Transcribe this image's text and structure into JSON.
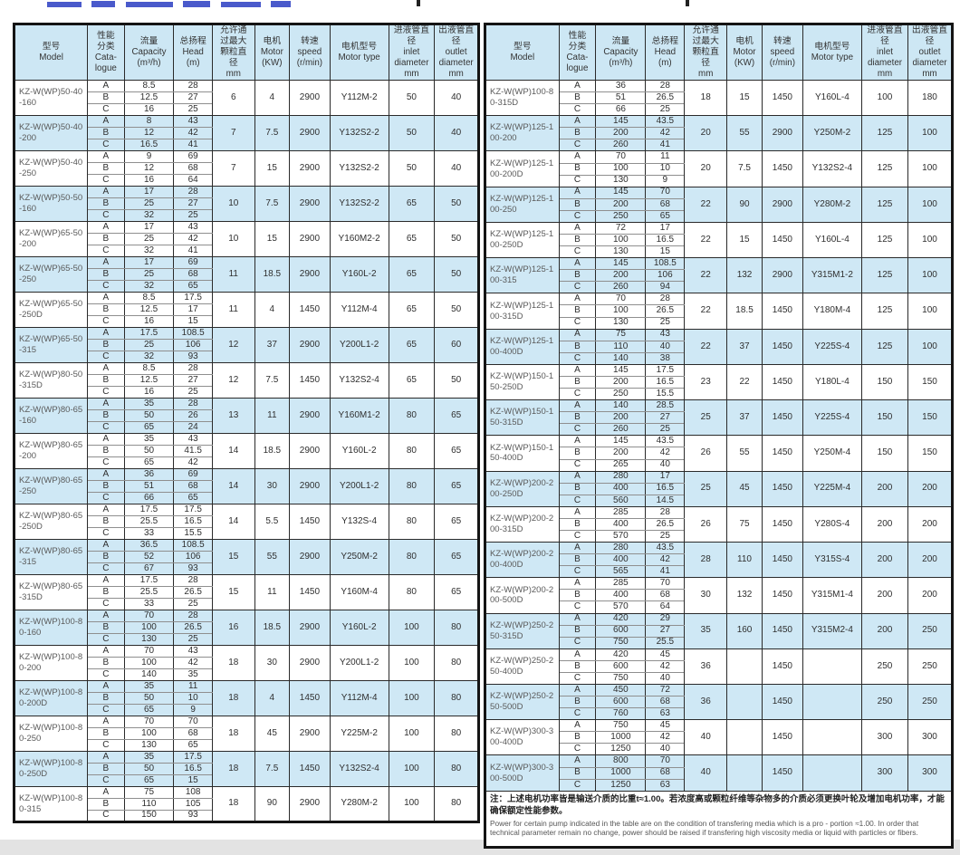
{
  "colors": {
    "band_blue": "#cfe8f5",
    "header_blue": "#cde7f4",
    "border": "#2a2a2a",
    "title_blue": "#4a5acb"
  },
  "catalogue_labels": [
    "A",
    "B",
    "C"
  ],
  "columns": [
    {
      "key": "model",
      "label": "型号\nModel"
    },
    {
      "key": "catalogue",
      "label": "性能\n分类\nCata-\nlogue"
    },
    {
      "key": "capacity",
      "label": "流量\nCapacity\n(m³/h)"
    },
    {
      "key": "head",
      "label": "总扬程\nHead\n(m)"
    },
    {
      "key": "particle",
      "label": "允许通\n过最大\n颗粒直\n径\nmm"
    },
    {
      "key": "motor",
      "label": "电机\nMotor\n(KW)"
    },
    {
      "key": "speed",
      "label": "转速\nspeed\n(r/min)"
    },
    {
      "key": "type",
      "label": "电机型号\nMotor type"
    },
    {
      "key": "inlet",
      "label": "进液管直\n径\ninlet\ndiameter\nmm"
    },
    {
      "key": "outlet",
      "label": "出液管直\n径\noutlet\ndiameter\nmm"
    }
  ],
  "left_table": {
    "rows": [
      {
        "model": "KZ-W(WP)50-40-160",
        "abc": [
          [
            "8.5",
            "28"
          ],
          [
            "12.5",
            "27"
          ],
          [
            "16",
            "25"
          ]
        ],
        "particle": "6",
        "motor": "4",
        "speed": "2900",
        "type": "Y112M-2",
        "inlet": "50",
        "outlet": "40"
      },
      {
        "model": "KZ-W(WP)50-40-200",
        "abc": [
          [
            "8",
            "43"
          ],
          [
            "12",
            "42"
          ],
          [
            "16.5",
            "41"
          ]
        ],
        "particle": "7",
        "motor": "7.5",
        "speed": "2900",
        "type": "Y132S2-2",
        "inlet": "50",
        "outlet": "40"
      },
      {
        "model": "KZ-W(WP)50-40-250",
        "abc": [
          [
            "9",
            "69"
          ],
          [
            "12",
            "68"
          ],
          [
            "16",
            "64"
          ]
        ],
        "particle": "7",
        "motor": "15",
        "speed": "2900",
        "type": "Y132S2-2",
        "inlet": "50",
        "outlet": "40"
      },
      {
        "model": "KZ-W(WP)50-50-160",
        "abc": [
          [
            "17",
            "28"
          ],
          [
            "25",
            "27"
          ],
          [
            "32",
            "25"
          ]
        ],
        "particle": "10",
        "motor": "7.5",
        "speed": "2900",
        "type": "Y132S2-2",
        "inlet": "65",
        "outlet": "50"
      },
      {
        "model": "KZ-W(WP)65-50-200",
        "abc": [
          [
            "17",
            "43"
          ],
          [
            "25",
            "42"
          ],
          [
            "32",
            "41"
          ]
        ],
        "particle": "10",
        "motor": "15",
        "speed": "2900",
        "type": "Y160M2-2",
        "inlet": "65",
        "outlet": "50"
      },
      {
        "model": "KZ-W(WP)65-50-250",
        "abc": [
          [
            "17",
            "69"
          ],
          [
            "25",
            "68"
          ],
          [
            "32",
            "65"
          ]
        ],
        "particle": "11",
        "motor": "18.5",
        "speed": "2900",
        "type": "Y160L-2",
        "inlet": "65",
        "outlet": "50"
      },
      {
        "model": "KZ-W(WP)65-50-250D",
        "abc": [
          [
            "8.5",
            "17.5"
          ],
          [
            "12.5",
            "17"
          ],
          [
            "16",
            "15"
          ]
        ],
        "particle": "11",
        "motor": "4",
        "speed": "1450",
        "type": "Y112M-4",
        "inlet": "65",
        "outlet": "50"
      },
      {
        "model": "KZ-W(WP)65-50-315",
        "abc": [
          [
            "17.5",
            "108.5"
          ],
          [
            "25",
            "106"
          ],
          [
            "32",
            "93"
          ]
        ],
        "particle": "12",
        "motor": "37",
        "speed": "2900",
        "type": "Y200L1-2",
        "inlet": "65",
        "outlet": "60"
      },
      {
        "model": "KZ-W(WP)80-50-315D",
        "abc": [
          [
            "8.5",
            "28"
          ],
          [
            "12.5",
            "27"
          ],
          [
            "16",
            "25"
          ]
        ],
        "particle": "12",
        "motor": "7.5",
        "speed": "1450",
        "type": "Y132S2-4",
        "inlet": "65",
        "outlet": "50"
      },
      {
        "model": "KZ-W(WP)80-65-160",
        "abc": [
          [
            "35",
            "28"
          ],
          [
            "50",
            "26"
          ],
          [
            "65",
            "24"
          ]
        ],
        "particle": "13",
        "motor": "11",
        "speed": "2900",
        "type": "Y160M1-2",
        "inlet": "80",
        "outlet": "65"
      },
      {
        "model": "KZ-W(WP)80-65-200",
        "abc": [
          [
            "35",
            "43"
          ],
          [
            "50",
            "41.5"
          ],
          [
            "65",
            "42"
          ]
        ],
        "particle": "14",
        "motor": "18.5",
        "speed": "2900",
        "type": "Y160L-2",
        "inlet": "80",
        "outlet": "65"
      },
      {
        "model": "KZ-W(WP)80-65-250",
        "abc": [
          [
            "36",
            "69"
          ],
          [
            "51",
            "68"
          ],
          [
            "66",
            "65"
          ]
        ],
        "particle": "14",
        "motor": "30",
        "speed": "2900",
        "type": "Y200L1-2",
        "inlet": "80",
        "outlet": "65"
      },
      {
        "model": "KZ-W(WP)80-65-250D",
        "abc": [
          [
            "17.5",
            "17.5"
          ],
          [
            "25.5",
            "16.5"
          ],
          [
            "33",
            "15.5"
          ]
        ],
        "particle": "14",
        "motor": "5.5",
        "speed": "1450",
        "type": "Y132S-4",
        "inlet": "80",
        "outlet": "65"
      },
      {
        "model": "KZ-W(WP)80-65-315",
        "abc": [
          [
            "36.5",
            "108.5"
          ],
          [
            "52",
            "106"
          ],
          [
            "67",
            "93"
          ]
        ],
        "particle": "15",
        "motor": "55",
        "speed": "2900",
        "type": "Y250M-2",
        "inlet": "80",
        "outlet": "65"
      },
      {
        "model": "KZ-W(WP)80-65-315D",
        "abc": [
          [
            "17.5",
            "28"
          ],
          [
            "25.5",
            "26.5"
          ],
          [
            "33",
            "25"
          ]
        ],
        "particle": "15",
        "motor": "11",
        "speed": "1450",
        "type": "Y160M-4",
        "inlet": "80",
        "outlet": "65"
      },
      {
        "model": "KZ-W(WP)100-80-160",
        "abc": [
          [
            "70",
            "28"
          ],
          [
            "100",
            "26.5"
          ],
          [
            "130",
            "25"
          ]
        ],
        "particle": "16",
        "motor": "18.5",
        "speed": "2900",
        "type": "Y160L-2",
        "inlet": "100",
        "outlet": "80"
      },
      {
        "model": "KZ-W(WP)100-80-200",
        "abc": [
          [
            "70",
            "43"
          ],
          [
            "100",
            "42"
          ],
          [
            "140",
            "35"
          ]
        ],
        "particle": "18",
        "motor": "30",
        "speed": "2900",
        "type": "Y200L1-2",
        "inlet": "100",
        "outlet": "80"
      },
      {
        "model": "KZ-W(WP)100-80-200D",
        "abc": [
          [
            "35",
            "11"
          ],
          [
            "50",
            "10"
          ],
          [
            "65",
            "9"
          ]
        ],
        "particle": "18",
        "motor": "4",
        "speed": "1450",
        "type": "Y112M-4",
        "inlet": "100",
        "outlet": "80"
      },
      {
        "model": "KZ-W(WP)100-80-250",
        "abc": [
          [
            "70",
            "70"
          ],
          [
            "100",
            "68"
          ],
          [
            "130",
            "65"
          ]
        ],
        "particle": "18",
        "motor": "45",
        "speed": "2900",
        "type": "Y225M-2",
        "inlet": "100",
        "outlet": "80"
      },
      {
        "model": "KZ-W(WP)100-80-250D",
        "abc": [
          [
            "35",
            "17.5"
          ],
          [
            "50",
            "16.5"
          ],
          [
            "65",
            "15"
          ]
        ],
        "particle": "18",
        "motor": "7.5",
        "speed": "1450",
        "type": "Y132S2-4",
        "inlet": "100",
        "outlet": "80"
      },
      {
        "model": "KZ-W(WP)100-80-315",
        "abc": [
          [
            "75",
            "108"
          ],
          [
            "110",
            "105"
          ],
          [
            "150",
            "93"
          ]
        ],
        "particle": "18",
        "motor": "90",
        "speed": "2900",
        "type": "Y280M-2",
        "inlet": "100",
        "outlet": "80"
      }
    ]
  },
  "right_table": {
    "rows": [
      {
        "model": "KZ-W(WP)100-80-315D",
        "abc": [
          [
            "36",
            "28"
          ],
          [
            "51",
            "26.5"
          ],
          [
            "66",
            "25"
          ]
        ],
        "particle": "18",
        "motor": "15",
        "speed": "1450",
        "type": "Y160L-4",
        "inlet": "100",
        "outlet": "180"
      },
      {
        "model": "KZ-W(WP)125-100-200",
        "abc": [
          [
            "145",
            "43.5"
          ],
          [
            "200",
            "42"
          ],
          [
            "260",
            "41"
          ]
        ],
        "particle": "20",
        "motor": "55",
        "speed": "2900",
        "type": "Y250M-2",
        "inlet": "125",
        "outlet": "100"
      },
      {
        "model": "KZ-W(WP)125-100-200D",
        "abc": [
          [
            "70",
            "11"
          ],
          [
            "100",
            "10"
          ],
          [
            "130",
            "9"
          ]
        ],
        "particle": "20",
        "motor": "7.5",
        "speed": "1450",
        "type": "Y132S2-4",
        "inlet": "125",
        "outlet": "100"
      },
      {
        "model": "KZ-W(WP)125-100-250",
        "abc": [
          [
            "145",
            "70"
          ],
          [
            "200",
            "68"
          ],
          [
            "250",
            "65"
          ]
        ],
        "particle": "22",
        "motor": "90",
        "speed": "2900",
        "type": "Y280M-2",
        "inlet": "125",
        "outlet": "100"
      },
      {
        "model": "KZ-W(WP)125-100-250D",
        "abc": [
          [
            "72",
            "17"
          ],
          [
            "100",
            "16.5"
          ],
          [
            "130",
            "15"
          ]
        ],
        "particle": "22",
        "motor": "15",
        "speed": "1450",
        "type": "Y160L-4",
        "inlet": "125",
        "outlet": "100"
      },
      {
        "model": "KZ-W(WP)125-100-315",
        "abc": [
          [
            "145",
            "108.5"
          ],
          [
            "200",
            "106"
          ],
          [
            "260",
            "94"
          ]
        ],
        "particle": "22",
        "motor": "132",
        "speed": "2900",
        "type": "Y315M1-2",
        "inlet": "125",
        "outlet": "100"
      },
      {
        "model": "KZ-W(WP)125-100-315D",
        "abc": [
          [
            "70",
            "28"
          ],
          [
            "100",
            "26.5"
          ],
          [
            "130",
            "25"
          ]
        ],
        "particle": "22",
        "motor": "18.5",
        "speed": "1450",
        "type": "Y180M-4",
        "inlet": "125",
        "outlet": "100"
      },
      {
        "model": "KZ-W(WP)125-100-400D",
        "abc": [
          [
            "75",
            "43"
          ],
          [
            "110",
            "40"
          ],
          [
            "140",
            "38"
          ]
        ],
        "particle": "22",
        "motor": "37",
        "speed": "1450",
        "type": "Y225S-4",
        "inlet": "125",
        "outlet": "100"
      },
      {
        "model": "KZ-W(WP)150-150-250D",
        "abc": [
          [
            "145",
            "17.5"
          ],
          [
            "200",
            "16.5"
          ],
          [
            "250",
            "15.5"
          ]
        ],
        "particle": "23",
        "motor": "22",
        "speed": "1450",
        "type": "Y180L-4",
        "inlet": "150",
        "outlet": "150"
      },
      {
        "model": "KZ-W(WP)150-150-315D",
        "abc": [
          [
            "140",
            "28.5"
          ],
          [
            "200",
            "27"
          ],
          [
            "260",
            "25"
          ]
        ],
        "particle": "25",
        "motor": "37",
        "speed": "1450",
        "type": "Y225S-4",
        "inlet": "150",
        "outlet": "150"
      },
      {
        "model": "KZ-W(WP)150-150-400D",
        "abc": [
          [
            "145",
            "43.5"
          ],
          [
            "200",
            "42"
          ],
          [
            "265",
            "40"
          ]
        ],
        "particle": "26",
        "motor": "55",
        "speed": "1450",
        "type": "Y250M-4",
        "inlet": "150",
        "outlet": "150"
      },
      {
        "model": "KZ-W(WP)200-200-250D",
        "abc": [
          [
            "280",
            "17"
          ],
          [
            "400",
            "16.5"
          ],
          [
            "560",
            "14.5"
          ]
        ],
        "particle": "25",
        "motor": "45",
        "speed": "1450",
        "type": "Y225M-4",
        "inlet": "200",
        "outlet": "200"
      },
      {
        "model": "KZ-W(WP)200-200-315D",
        "abc": [
          [
            "285",
            "28"
          ],
          [
            "400",
            "26.5"
          ],
          [
            "570",
            "25"
          ]
        ],
        "particle": "26",
        "motor": "75",
        "speed": "1450",
        "type": "Y280S-4",
        "inlet": "200",
        "outlet": "200"
      },
      {
        "model": "KZ-W(WP)200-200-400D",
        "abc": [
          [
            "280",
            "43.5"
          ],
          [
            "400",
            "42"
          ],
          [
            "565",
            "41"
          ]
        ],
        "particle": "28",
        "motor": "110",
        "speed": "1450",
        "type": "Y315S-4",
        "inlet": "200",
        "outlet": "200"
      },
      {
        "model": "KZ-W(WP)200-200-500D",
        "abc": [
          [
            "285",
            "70"
          ],
          [
            "400",
            "68"
          ],
          [
            "570",
            "64"
          ]
        ],
        "particle": "30",
        "motor": "132",
        "speed": "1450",
        "type": "Y315M1-4",
        "inlet": "200",
        "outlet": "200"
      },
      {
        "model": "KZ-W(WP)250-250-315D",
        "abc": [
          [
            "420",
            "29"
          ],
          [
            "600",
            "27"
          ],
          [
            "750",
            "25.5"
          ]
        ],
        "particle": "35",
        "motor": "160",
        "speed": "1450",
        "type": "Y315M2-4",
        "inlet": "200",
        "outlet": "250"
      },
      {
        "model": "KZ-W(WP)250-250-400D",
        "abc": [
          [
            "420",
            "45"
          ],
          [
            "600",
            "42"
          ],
          [
            "750",
            "40"
          ]
        ],
        "particle": "36",
        "motor": "",
        "speed": "1450",
        "type": "",
        "inlet": "250",
        "outlet": "250"
      },
      {
        "model": "KZ-W(WP)250-250-500D",
        "abc": [
          [
            "450",
            "72"
          ],
          [
            "600",
            "68"
          ],
          [
            "760",
            "63"
          ]
        ],
        "particle": "36",
        "motor": "",
        "speed": "1450",
        "type": "",
        "inlet": "250",
        "outlet": "250"
      },
      {
        "model": "KZ-W(WP)300-300-400D",
        "abc": [
          [
            "750",
            "45"
          ],
          [
            "1000",
            "42"
          ],
          [
            "1250",
            "40"
          ]
        ],
        "particle": "40",
        "motor": "",
        "speed": "1450",
        "type": "",
        "inlet": "300",
        "outlet": "300"
      },
      {
        "model": "KZ-W(WP)300-300-500D",
        "abc": [
          [
            "800",
            "70"
          ],
          [
            "1000",
            "68"
          ],
          [
            "1250",
            "63"
          ]
        ],
        "particle": "40",
        "motor": "",
        "speed": "1450",
        "type": "",
        "inlet": "300",
        "outlet": "300"
      }
    ],
    "footnote": {
      "cn": "注：上述电机功率皆是输送介质的比重t≈1.00。若浓度高或颗粒纤维等杂物多的介质必须更换叶轮及增加电机功率，才能确保额定性能参数。",
      "en": "Power for certain pump indicated in the table are on the condition of transfering media which is a pro - portion ≈1.00. In order that technical parameter remain no change, power should be raised if transfering high viscosity media or liquid with particles or fibers."
    }
  }
}
